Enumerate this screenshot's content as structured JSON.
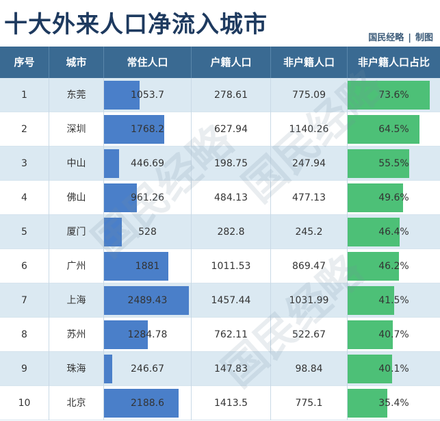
{
  "header": {
    "title": "十大外来人口净流入城市",
    "credit_brand": "国民经略",
    "credit_sep": "|",
    "credit_action": "制图"
  },
  "watermark_text": "国民经略",
  "colors": {
    "header_bg": "#3a6a92",
    "blue_bar": "#4a7fc9",
    "green_bar": "#4dc077",
    "row_alt": "#dbe9f2"
  },
  "chart_data": {
    "type": "table",
    "columns": [
      "序号",
      "城市",
      "常住人口",
      "户籍人口",
      "非户籍人口",
      "非户籍人口占比"
    ],
    "bar_scale": {
      "resident_max": 2489.43,
      "ratio_max_percent": 73.6
    },
    "rows": [
      {
        "rank": "1",
        "city": "东莞",
        "resident": "1053.7",
        "resident_value": 1053.7,
        "registered": "278.61",
        "non_registered": "775.09",
        "ratio": "73.6%",
        "ratio_value": 73.6
      },
      {
        "rank": "2",
        "city": "深圳",
        "resident": "1768.2",
        "resident_value": 1768.2,
        "registered": "627.94",
        "non_registered": "1140.26",
        "ratio": "64.5%",
        "ratio_value": 64.5
      },
      {
        "rank": "3",
        "city": "中山",
        "resident": "446.69",
        "resident_value": 446.69,
        "registered": "198.75",
        "non_registered": "247.94",
        "ratio": "55.5%",
        "ratio_value": 55.5
      },
      {
        "rank": "4",
        "city": "佛山",
        "resident": "961.26",
        "resident_value": 961.26,
        "registered": "484.13",
        "non_registered": "477.13",
        "ratio": "49.6%",
        "ratio_value": 49.6
      },
      {
        "rank": "5",
        "city": "厦门",
        "resident": "528",
        "resident_value": 528,
        "registered": "282.8",
        "non_registered": "245.2",
        "ratio": "46.4%",
        "ratio_value": 46.4
      },
      {
        "rank": "6",
        "city": "广州",
        "resident": "1881",
        "resident_value": 1881,
        "registered": "1011.53",
        "non_registered": "869.47",
        "ratio": "46.2%",
        "ratio_value": 46.2
      },
      {
        "rank": "7",
        "city": "上海",
        "resident": "2489.43",
        "resident_value": 2489.43,
        "registered": "1457.44",
        "non_registered": "1031.99",
        "ratio": "41.5%",
        "ratio_value": 41.5
      },
      {
        "rank": "8",
        "city": "苏州",
        "resident": "1284.78",
        "resident_value": 1284.78,
        "registered": "762.11",
        "non_registered": "522.67",
        "ratio": "40.7%",
        "ratio_value": 40.7
      },
      {
        "rank": "9",
        "city": "珠海",
        "resident": "246.67",
        "resident_value": 246.67,
        "registered": "147.83",
        "non_registered": "98.84",
        "ratio": "40.1%",
        "ratio_value": 40.1
      },
      {
        "rank": "10",
        "city": "北京",
        "resident": "2188.6",
        "resident_value": 2188.6,
        "registered": "1413.5",
        "non_registered": "775.1",
        "ratio": "35.4%",
        "ratio_value": 35.4
      }
    ]
  }
}
